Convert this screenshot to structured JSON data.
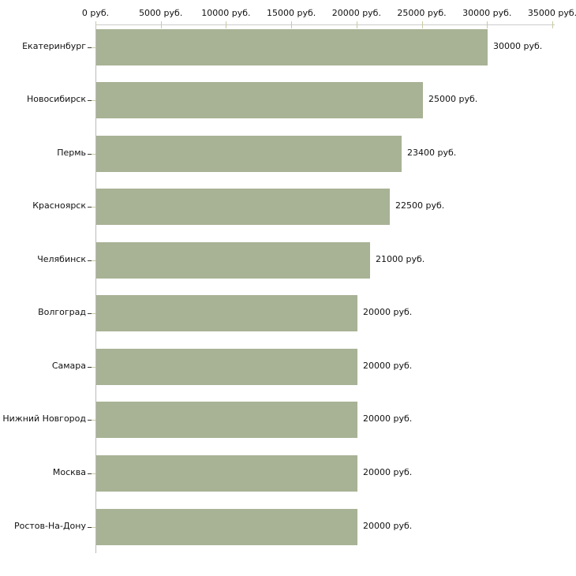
{
  "chart_data": {
    "type": "bar",
    "orientation": "horizontal",
    "title": "",
    "xlabel": "",
    "ylabel": "",
    "categories": [
      "Екатеринбург",
      "Новосибирск",
      "Пермь",
      "Красноярск",
      "Челябинск",
      "Волгоград",
      "Самара",
      "Нижний Новгород",
      "Москва",
      "Ростов-На-Дону"
    ],
    "values": [
      30000,
      25000,
      23400,
      22500,
      21000,
      20000,
      20000,
      20000,
      20000,
      20000
    ],
    "value_labels": [
      "30000 руб.",
      "25000 руб.",
      "23400 руб.",
      "22500 руб.",
      "21000 руб.",
      "20000 руб.",
      "20000 руб.",
      "20000 руб.",
      "20000 руб.",
      "20000 руб."
    ],
    "x_ticks": [
      "0 руб.",
      "5000 руб.",
      "10000 руб.",
      "15000 руб.",
      "20000 руб.",
      "25000 руб.",
      "30000 руб.",
      "35000 руб."
    ],
    "x_tick_values": [
      0,
      5000,
      10000,
      15000,
      20000,
      25000,
      30000,
      35000
    ],
    "xlim": [
      0,
      35000
    ],
    "grid": false,
    "legend": false,
    "colors": {
      "bar_fill": "#a8b295",
      "x_axis_line": "#cccccc",
      "y_axis_line": "#bbbbbb",
      "tick_mark": "#c9c9a3",
      "category_dash": "#3a3a3a",
      "text": "#111111",
      "background": "#ffffff"
    }
  }
}
